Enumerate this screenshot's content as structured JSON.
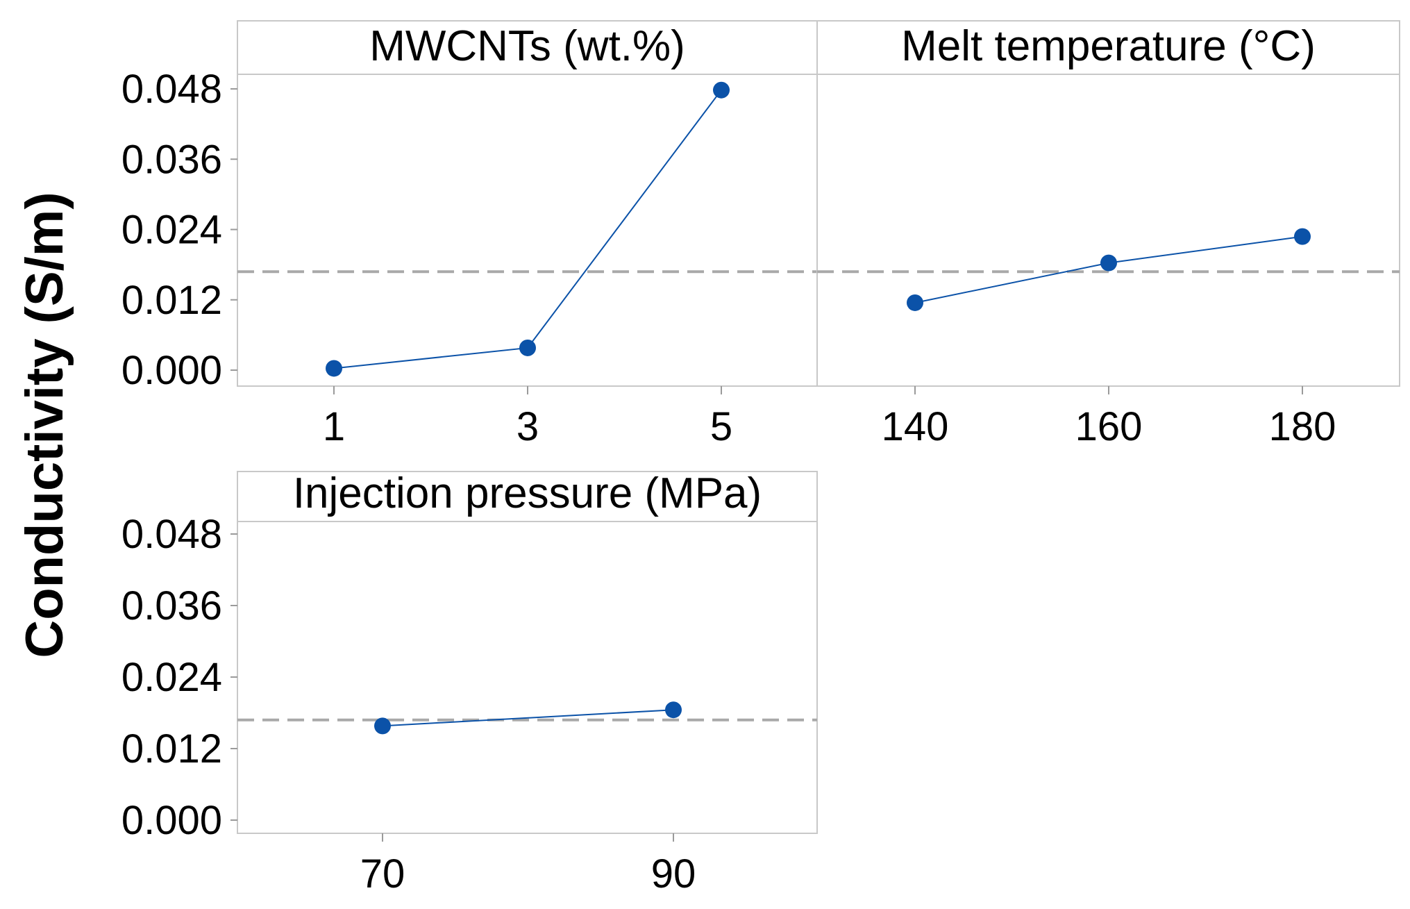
{
  "chart_data": {
    "type": "line",
    "ylabel": "Conductivity (S/m)",
    "ylim": [
      -0.002,
      0.058
    ],
    "y_ticks": [
      "0.000",
      "0.012",
      "0.024",
      "0.036",
      "0.048"
    ],
    "y_tick_values": [
      0,
      0.012,
      0.024,
      0.036,
      0.048
    ],
    "reference_mean": 0.0168,
    "reference_style": "dashed",
    "grid": false,
    "series_color": "#0b52a8",
    "reference_color": "#a9a9a9",
    "panels": [
      {
        "title": "MWCNTs (wt.%)",
        "x": [
          "1",
          "3",
          "5"
        ],
        "values": [
          0.0003,
          0.0038,
          0.0478
        ]
      },
      {
        "title": "Melt temperature (°C)",
        "x": [
          "140",
          "160",
          "180"
        ],
        "values": [
          0.0115,
          0.0183,
          0.0228
        ]
      },
      {
        "title": "Injection pressure (MPa)",
        "x": [
          "70",
          "90"
        ],
        "values": [
          0.0158,
          0.0185
        ]
      }
    ]
  }
}
